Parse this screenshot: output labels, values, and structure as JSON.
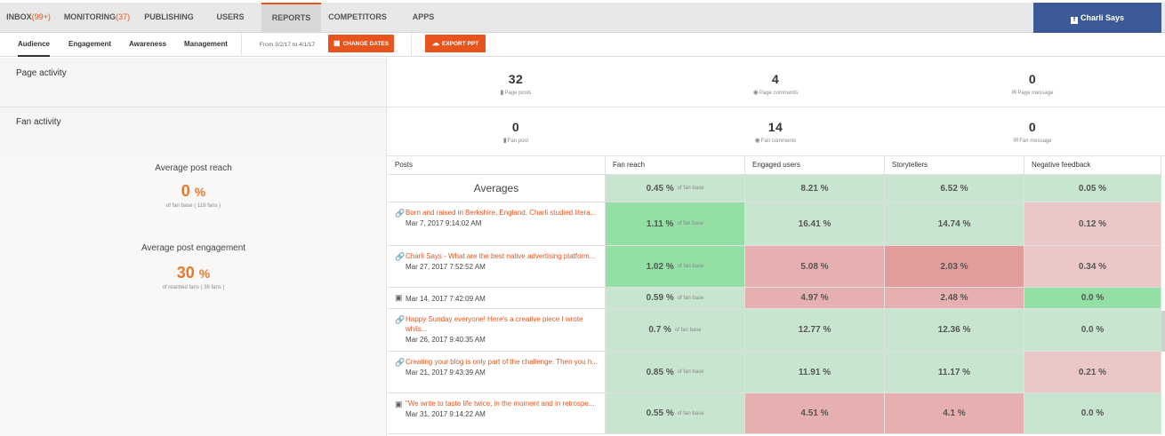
{
  "topnav": {
    "tabs": [
      {
        "label": "INBOX",
        "count": "(99+)"
      },
      {
        "label": "MONITORING",
        "count": "(37)"
      },
      {
        "label": "PUBLISHING",
        "count": ""
      },
      {
        "label": "USERS",
        "count": ""
      },
      {
        "label": "REPORTS",
        "count": ""
      },
      {
        "label": "COMPETITORS",
        "count": ""
      },
      {
        "label": "APPS",
        "count": ""
      }
    ],
    "active_tab": "REPORTS",
    "user_button": "Charli Says",
    "fb_icon": "f"
  },
  "subnav": {
    "tabs": [
      "Audience",
      "Engagement",
      "Awareness",
      "Management"
    ],
    "active_tab": "Audience",
    "date_range": "From 3/2/17 to 4/1/17",
    "change_dates": "CHANGE DATES",
    "export_ppt": "EXPORT PPT"
  },
  "page_activity": {
    "title": "Page activity",
    "stats": [
      {
        "value": "32",
        "label": "Page posts",
        "icon": "document-icon"
      },
      {
        "value": "4",
        "label": "Page comments",
        "icon": "comment-icon"
      },
      {
        "value": "0",
        "label": "Page message",
        "icon": "envelope-icon"
      }
    ]
  },
  "fan_activity": {
    "title": "Fan activity",
    "stats": [
      {
        "value": "0",
        "label": "Fan post",
        "icon": "document-icon"
      },
      {
        "value": "14",
        "label": "Fan comments",
        "icon": "comment-icon"
      },
      {
        "value": "0",
        "label": "Fan message",
        "icon": "envelope-icon"
      }
    ]
  },
  "averages_panel": {
    "reach_title": "Average post reach",
    "reach_value": "0",
    "reach_unit": "%",
    "reach_sub": "of fan base ( 119 fans )",
    "engagement_title": "Average post engagement",
    "engagement_value": "30",
    "engagement_unit": "%",
    "engagement_sub": "of reached fans ( 36 fans )"
  },
  "table": {
    "headers": [
      "Posts",
      "Fan reach",
      "Engaged users",
      "Storytellers",
      "Negative feedback"
    ],
    "averages": {
      "label": "Averages",
      "fan_reach": "0.45 %",
      "fan_reach_note": "of fan base",
      "engaged": "8.21 %",
      "storytellers": "6.52 %",
      "negative": "0.05 %"
    },
    "rows": [
      {
        "type": "link",
        "title": "Born and raised in Berkshire, England. Charli studied litera...",
        "date": "Mar 7, 2017 9:14:02 AM",
        "fan_reach": "1.11 %",
        "fan_reach_note": "of fan base",
        "engaged": "16.41 %",
        "storytellers": "14.74 %",
        "negative": "0.12 %"
      },
      {
        "type": "link",
        "title": "Charli Says - What are the best native advertising platform...",
        "date": "Mar 27, 2017 7:52:52 AM",
        "fan_reach": "1.02 %",
        "fan_reach_note": "of fan base",
        "engaged": "5.08 %",
        "storytellers": "2.03 %",
        "negative": "0.34 %"
      },
      {
        "type": "photo",
        "title": "",
        "date": "Mar 14, 2017 7:42:09 AM",
        "fan_reach": "0.59 %",
        "fan_reach_note": "of fan base",
        "engaged": "4.97 %",
        "storytellers": "2.48 %",
        "negative": "0.0 %"
      },
      {
        "type": "link",
        "title": "Happy Sunday everyone! Here's a creative piece I wrote whils...",
        "date": "Mar 26, 2017 9:40:35 AM",
        "fan_reach": "0.7 %",
        "fan_reach_note": "of fan base",
        "engaged": "12.77 %",
        "storytellers": "12.36 %",
        "negative": "0.0 %"
      },
      {
        "type": "link",
        "title": "Creating your blog is only part of the challenge. Then you h...",
        "date": "Mar 21, 2017 9:43:39 AM",
        "fan_reach": "0.85 %",
        "fan_reach_note": "of fan base",
        "engaged": "11.91 %",
        "storytellers": "11.17 %",
        "negative": "0.21 %"
      },
      {
        "type": "photo",
        "title": "\"We write to taste life twice, in the moment and in retrospe...",
        "date": "Mar 31, 2017 9:14:22 AM",
        "fan_reach": "0.55 %",
        "fan_reach_note": "of fan base",
        "engaged": "4.51 %",
        "storytellers": "4.1 %",
        "negative": "0.0 %"
      }
    ]
  },
  "colors": {
    "accent": "#e8541d",
    "facebook": "#3c5a99",
    "green_light": "#c8e6cf",
    "green_strong": "#93dfa5",
    "red_light": "#ecc7c7",
    "red_strong": "#e39c9c"
  }
}
